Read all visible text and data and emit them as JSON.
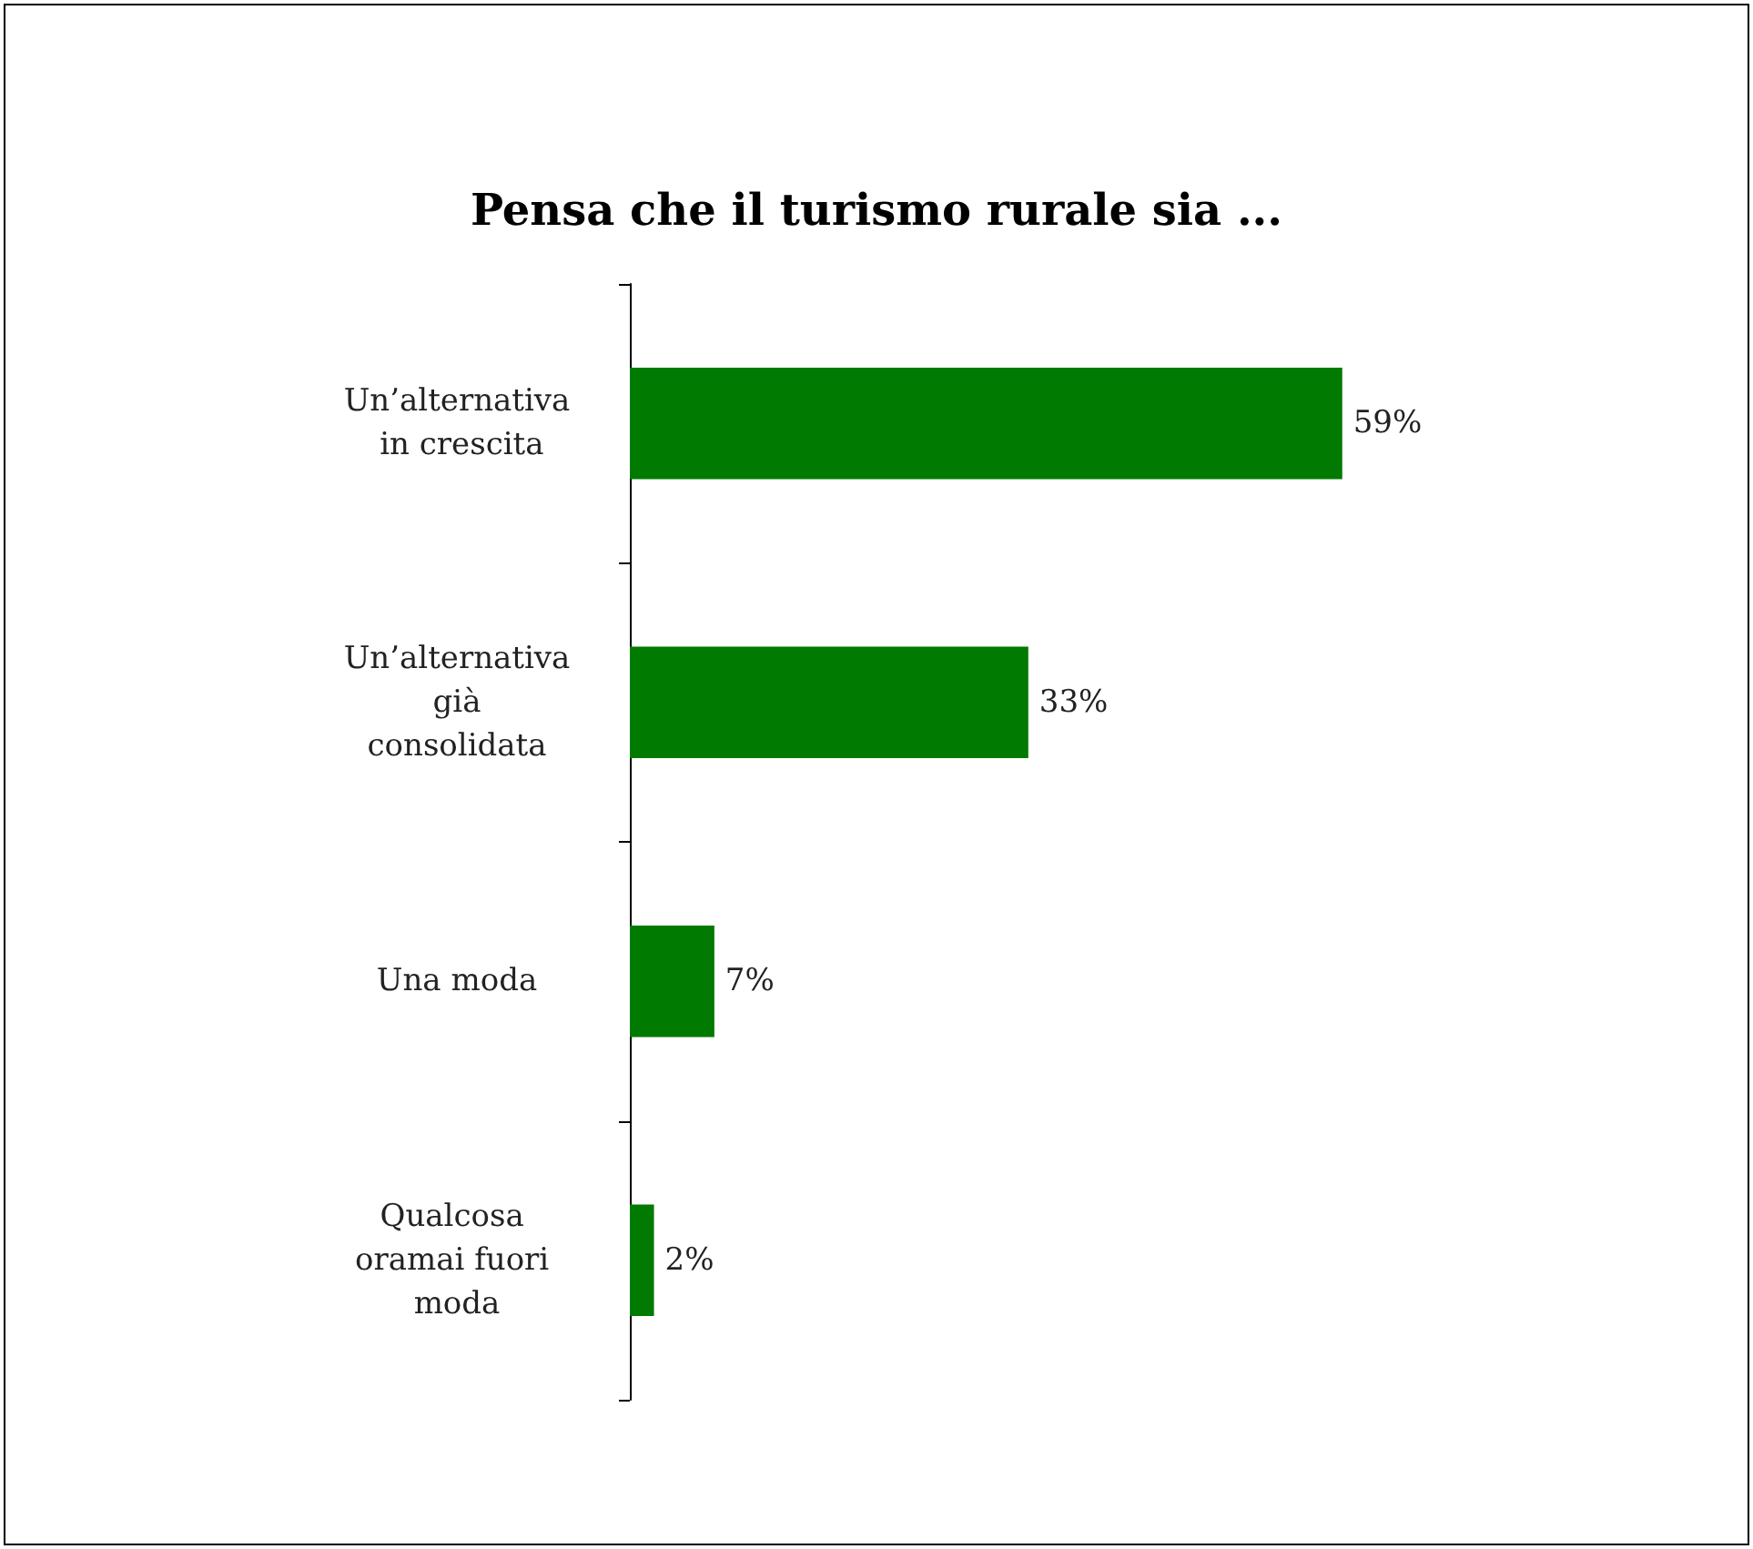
{
  "chart_data": {
    "type": "bar",
    "orientation": "horizontal",
    "title": "Pensa che il turismo rurale sia ...",
    "categories": [
      "Un’alternativa in crescita",
      "Un’alternativa già consolidata",
      "Una moda",
      "Qualcosa oramai fuori moda"
    ],
    "values": [
      59,
      33,
      7,
      2
    ],
    "color": "#007a00",
    "value_labels": [
      "59%",
      "33%",
      "7%",
      "2%"
    ],
    "grid": false
  }
}
